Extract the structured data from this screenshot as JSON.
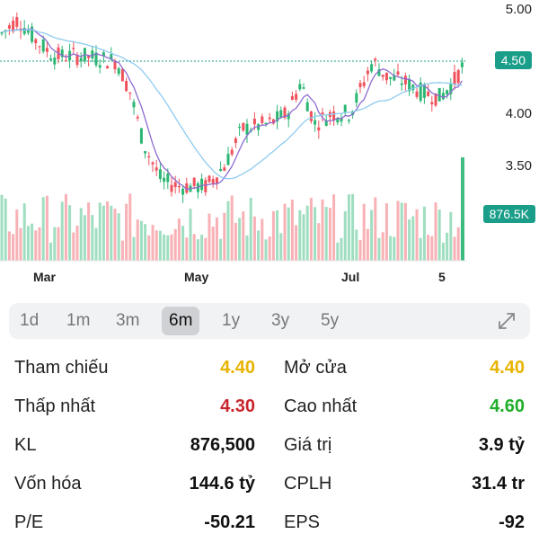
{
  "chart": {
    "price_ticks": [
      "5.00",
      "4.50",
      "4.00",
      "3.50"
    ],
    "current_price_tag": "4.50",
    "volume_tag": "876.5K",
    "months": [
      "Mar",
      "May",
      "Jul",
      "5"
    ]
  },
  "ranges": {
    "items": [
      "1d",
      "1m",
      "3m",
      "6m",
      "1y",
      "3y",
      "5y"
    ],
    "active": "6m"
  },
  "stats": {
    "ref_label": "Tham chiếu",
    "ref_value": "4.40",
    "open_label": "Mở cửa",
    "open_value": "4.40",
    "low_label": "Thấp nhất",
    "low_value": "4.30",
    "high_label": "Cao nhất",
    "high_value": "4.60",
    "vol_label": "KL",
    "vol_value": "876,500",
    "valuation_label": "Giá trị",
    "valuation_value": "3.9 tỷ",
    "cap_label": "Vốn hóa",
    "cap_value": "144.6 tỷ",
    "shares_label": "CPLH",
    "shares_value": "31.4 tr",
    "pe_label": "P/E",
    "pe_value": "-50.21",
    "eps_label": "EPS",
    "eps_value": "-92"
  },
  "colors": {
    "up": "#2bb673",
    "down": "#f0525c",
    "ref": "#e8b400",
    "accent_tag": "#1a9e8a",
    "ma_fast": "#8e6bd0",
    "ma_slow": "#8ecbf0"
  }
}
